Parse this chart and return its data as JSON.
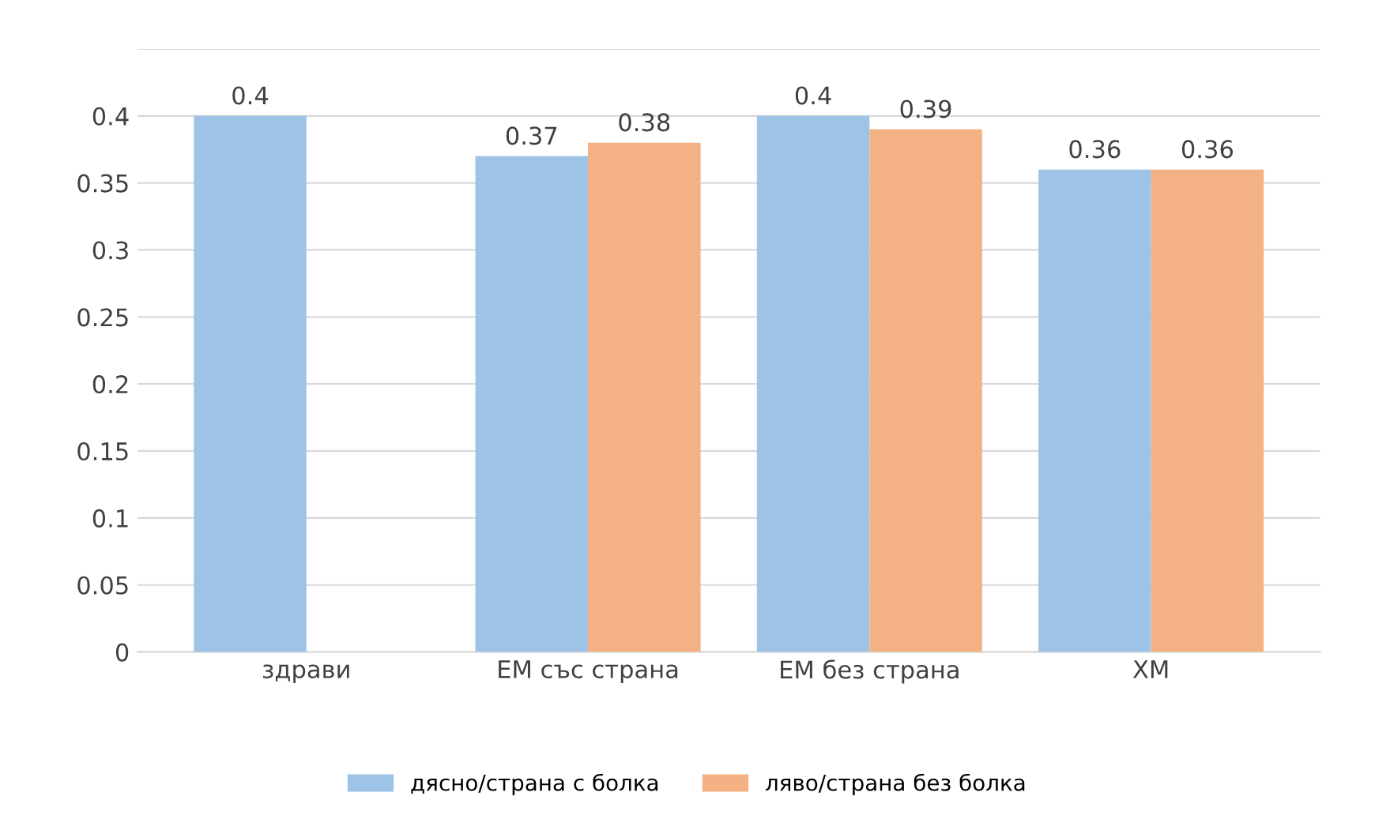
{
  "chart_data": {
    "type": "bar",
    "categories": [
      "здрави",
      "ЕМ със страна",
      "ЕМ без страна",
      "ХМ"
    ],
    "series": [
      {
        "name": "дясно/страна с болка",
        "color": "#9dc3e6",
        "values": [
          0.4,
          0.37,
          0.4,
          0.36
        ]
      },
      {
        "name": "ляво/страна без болка",
        "color": "#f4b183",
        "values": [
          null,
          0.38,
          0.39,
          0.36
        ]
      }
    ],
    "ylim": [
      0,
      0.45
    ],
    "yticks": [
      0,
      0.05,
      0.1,
      0.15,
      0.2,
      0.25,
      0.3,
      0.35,
      0.4,
      {
        "value": 0.45,
        "label": null
      }
    ],
    "grid": "y",
    "legend": "bottom",
    "data_labels": true
  }
}
